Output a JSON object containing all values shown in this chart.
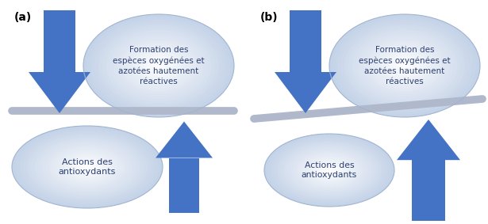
{
  "panel_a_label": "(a)",
  "panel_b_label": "(b)",
  "top_ellipse_text": "Formation des\nespèces oxygénées et\nazotées hautement\nréactives",
  "bottom_ellipse_text_a": "Actions des\nantioxydants",
  "bottom_ellipse_text_b": "Actions des\nantioxydants",
  "arrow_color": "#4472C4",
  "ellipse_fill_top": "#C5D3E8",
  "ellipse_fill_bottom_a": "#C5D3E8",
  "ellipse_fill_bottom_b": "#D0DCF0",
  "ellipse_edge_color": "none",
  "separator_color": "#B0B8CC",
  "background_color": "#FFFFFF",
  "text_color": "#2E4070",
  "label_color": "#000000"
}
